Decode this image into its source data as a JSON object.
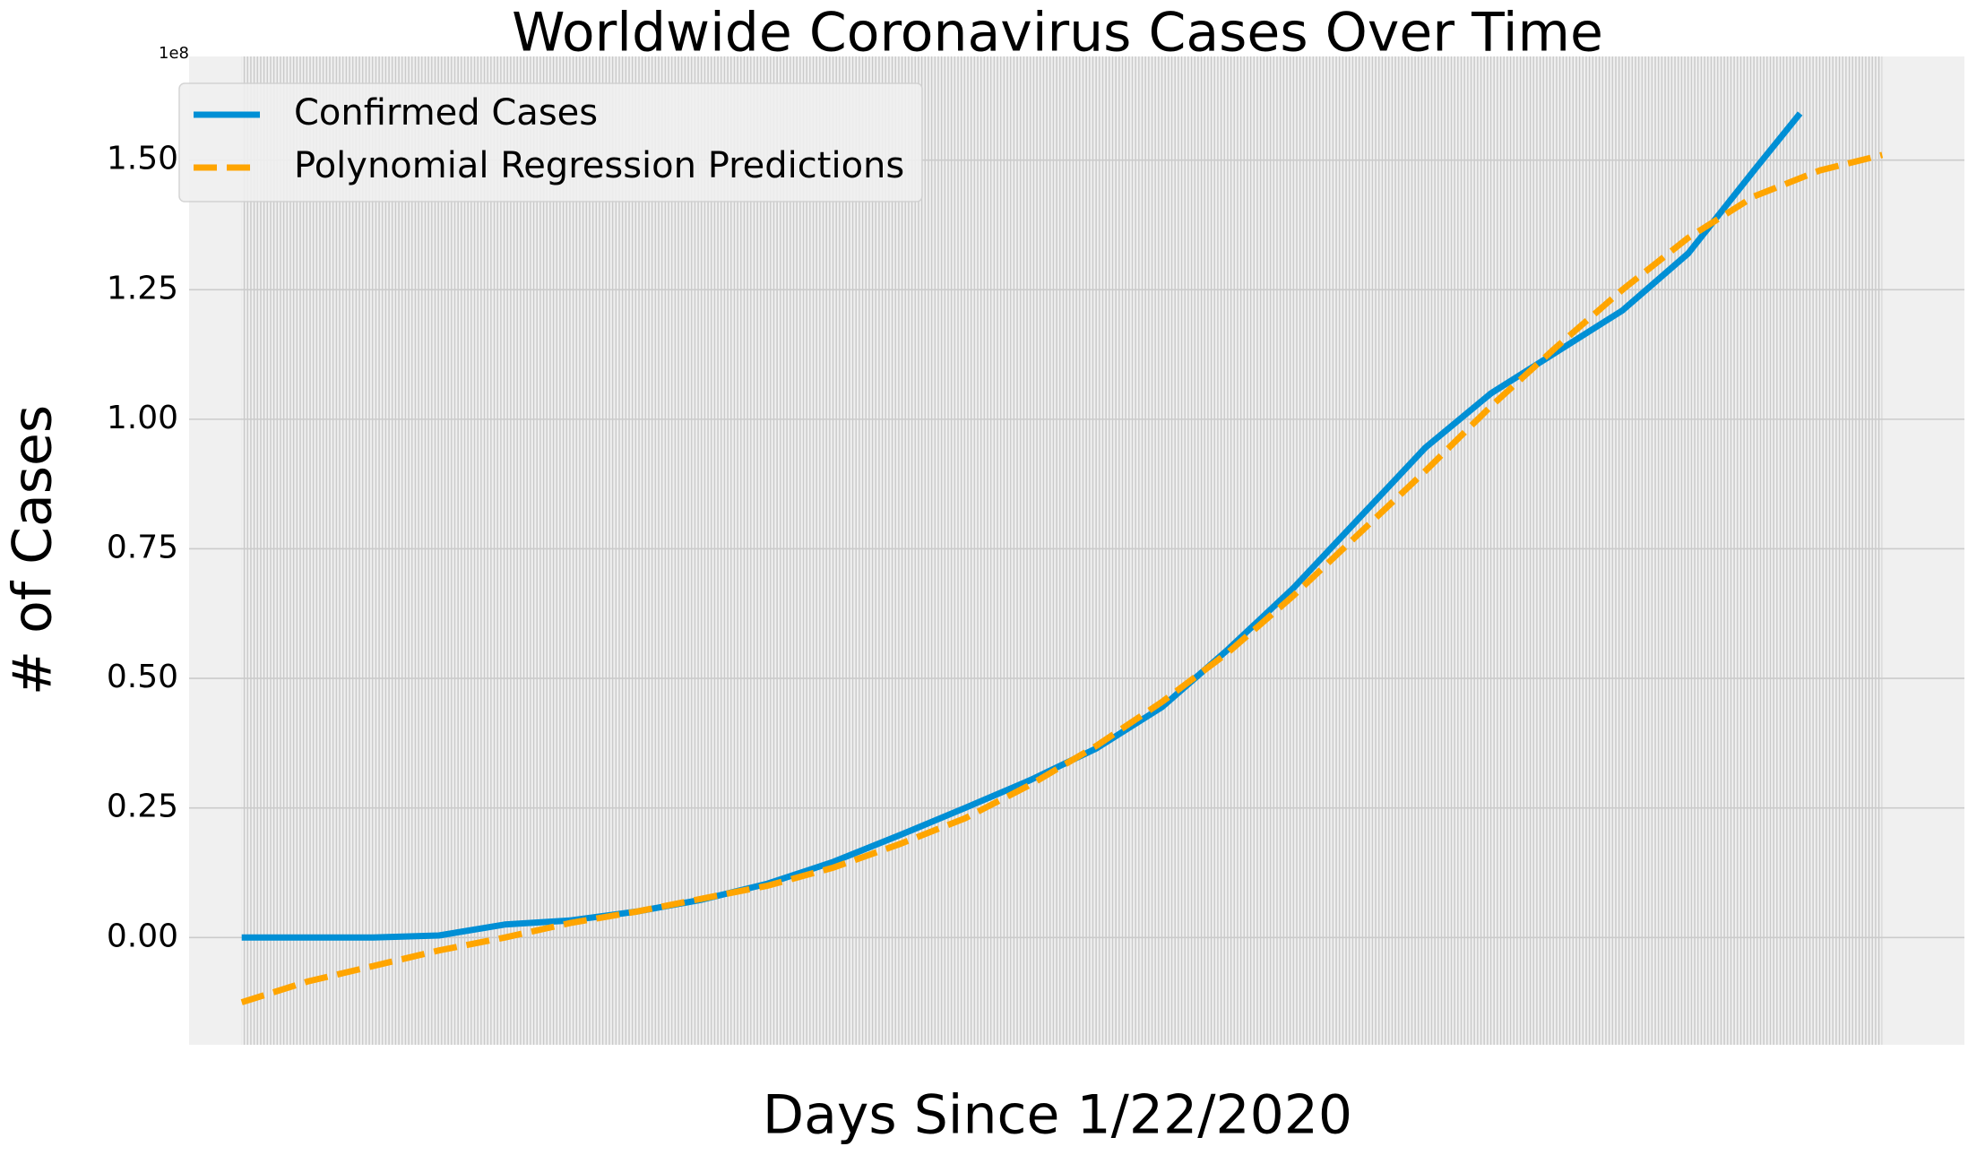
{
  "chart_data": {
    "type": "line",
    "title": "Worldwide Coronavirus Cases Over Time",
    "xlabel": "Days Since 1/22/2020",
    "ylabel": "# of Cases",
    "y_offset_label": "1e8",
    "x": [
      0,
      20,
      40,
      60,
      80,
      100,
      120,
      140,
      160,
      180,
      200,
      220,
      240,
      260,
      280,
      300,
      320,
      340,
      360,
      380,
      400,
      420,
      440,
      460,
      474,
      480,
      499
    ],
    "series": [
      {
        "name": "Confirmed Cases",
        "color": "#008fd5",
        "dash": false,
        "values": [
          0,
          0,
          0,
          400000,
          2500000,
          3300000,
          5000000,
          7300000,
          10400000,
          14600000,
          19700000,
          25000000,
          30400000,
          36500000,
          44500000,
          55600000,
          67500000,
          81000000,
          94500000,
          105000000,
          113000000,
          121000000,
          132000000,
          148000000,
          159000000,
          null,
          null
        ]
      },
      {
        "name": "Polynomial Regression Predictions",
        "color": "#ffa500",
        "dash": true,
        "values": [
          -12500000,
          -8500000,
          -5500000,
          -2500000,
          0,
          2800000,
          5000000,
          7500000,
          10000000,
          13500000,
          18000000,
          23000000,
          29500000,
          37000000,
          45500000,
          55000000,
          66000000,
          78000000,
          90000000,
          102500000,
          114000000,
          125000000,
          135000000,
          143000000,
          146500000,
          148000000,
          151000000
        ]
      }
    ],
    "xlim": [
      -16,
      524
    ],
    "ylim": [
      -20700000,
      170000000
    ],
    "yticks": [
      {
        "value": 0,
        "label": "0.00"
      },
      {
        "value": 25000000,
        "label": "0.25"
      },
      {
        "value": 50000000,
        "label": "0.50"
      },
      {
        "value": 75000000,
        "label": "0.75"
      },
      {
        "value": 100000000,
        "label": "1.00"
      },
      {
        "value": 125000000,
        "label": "1.25"
      },
      {
        "value": 150000000,
        "label": "1.50"
      }
    ],
    "grid": true,
    "legend": "upper left"
  }
}
